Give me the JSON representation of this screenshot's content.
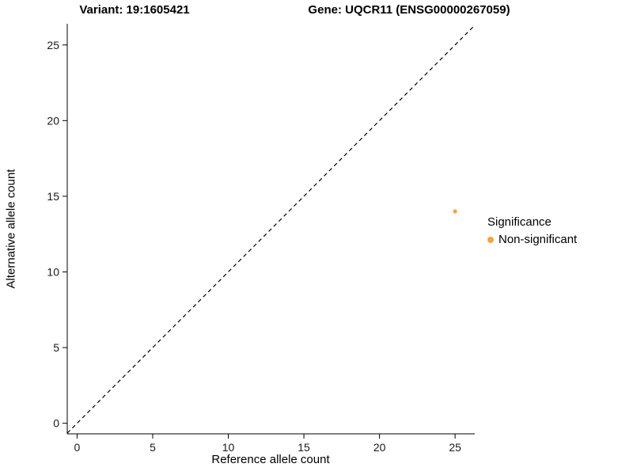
{
  "chart_data": {
    "type": "scatter",
    "title_variant": "Variant: 19:1605421",
    "title_gene": "Gene: UQCR11 (ENSG00000267059)",
    "xlabel": "Reference allele count",
    "ylabel": "Alternative allele count",
    "xlim": [
      -0.65,
      26.3
    ],
    "ylim": [
      -0.7,
      26.4
    ],
    "xticks": [
      0,
      5,
      10,
      15,
      20,
      25
    ],
    "yticks": [
      0,
      5,
      10,
      15,
      20,
      25
    ],
    "grid": false,
    "legend_position": "right",
    "identity_line": {
      "style": "dashed",
      "slope": 1,
      "intercept": 0,
      "color": "#000000"
    },
    "series": [
      {
        "name": "Non-significant",
        "color": "#F9A242",
        "points": [
          [
            25,
            14
          ]
        ]
      }
    ],
    "legend": {
      "title": "Significance",
      "entries": [
        {
          "label": "Non-significant",
          "color": "#F9A242"
        }
      ]
    }
  }
}
